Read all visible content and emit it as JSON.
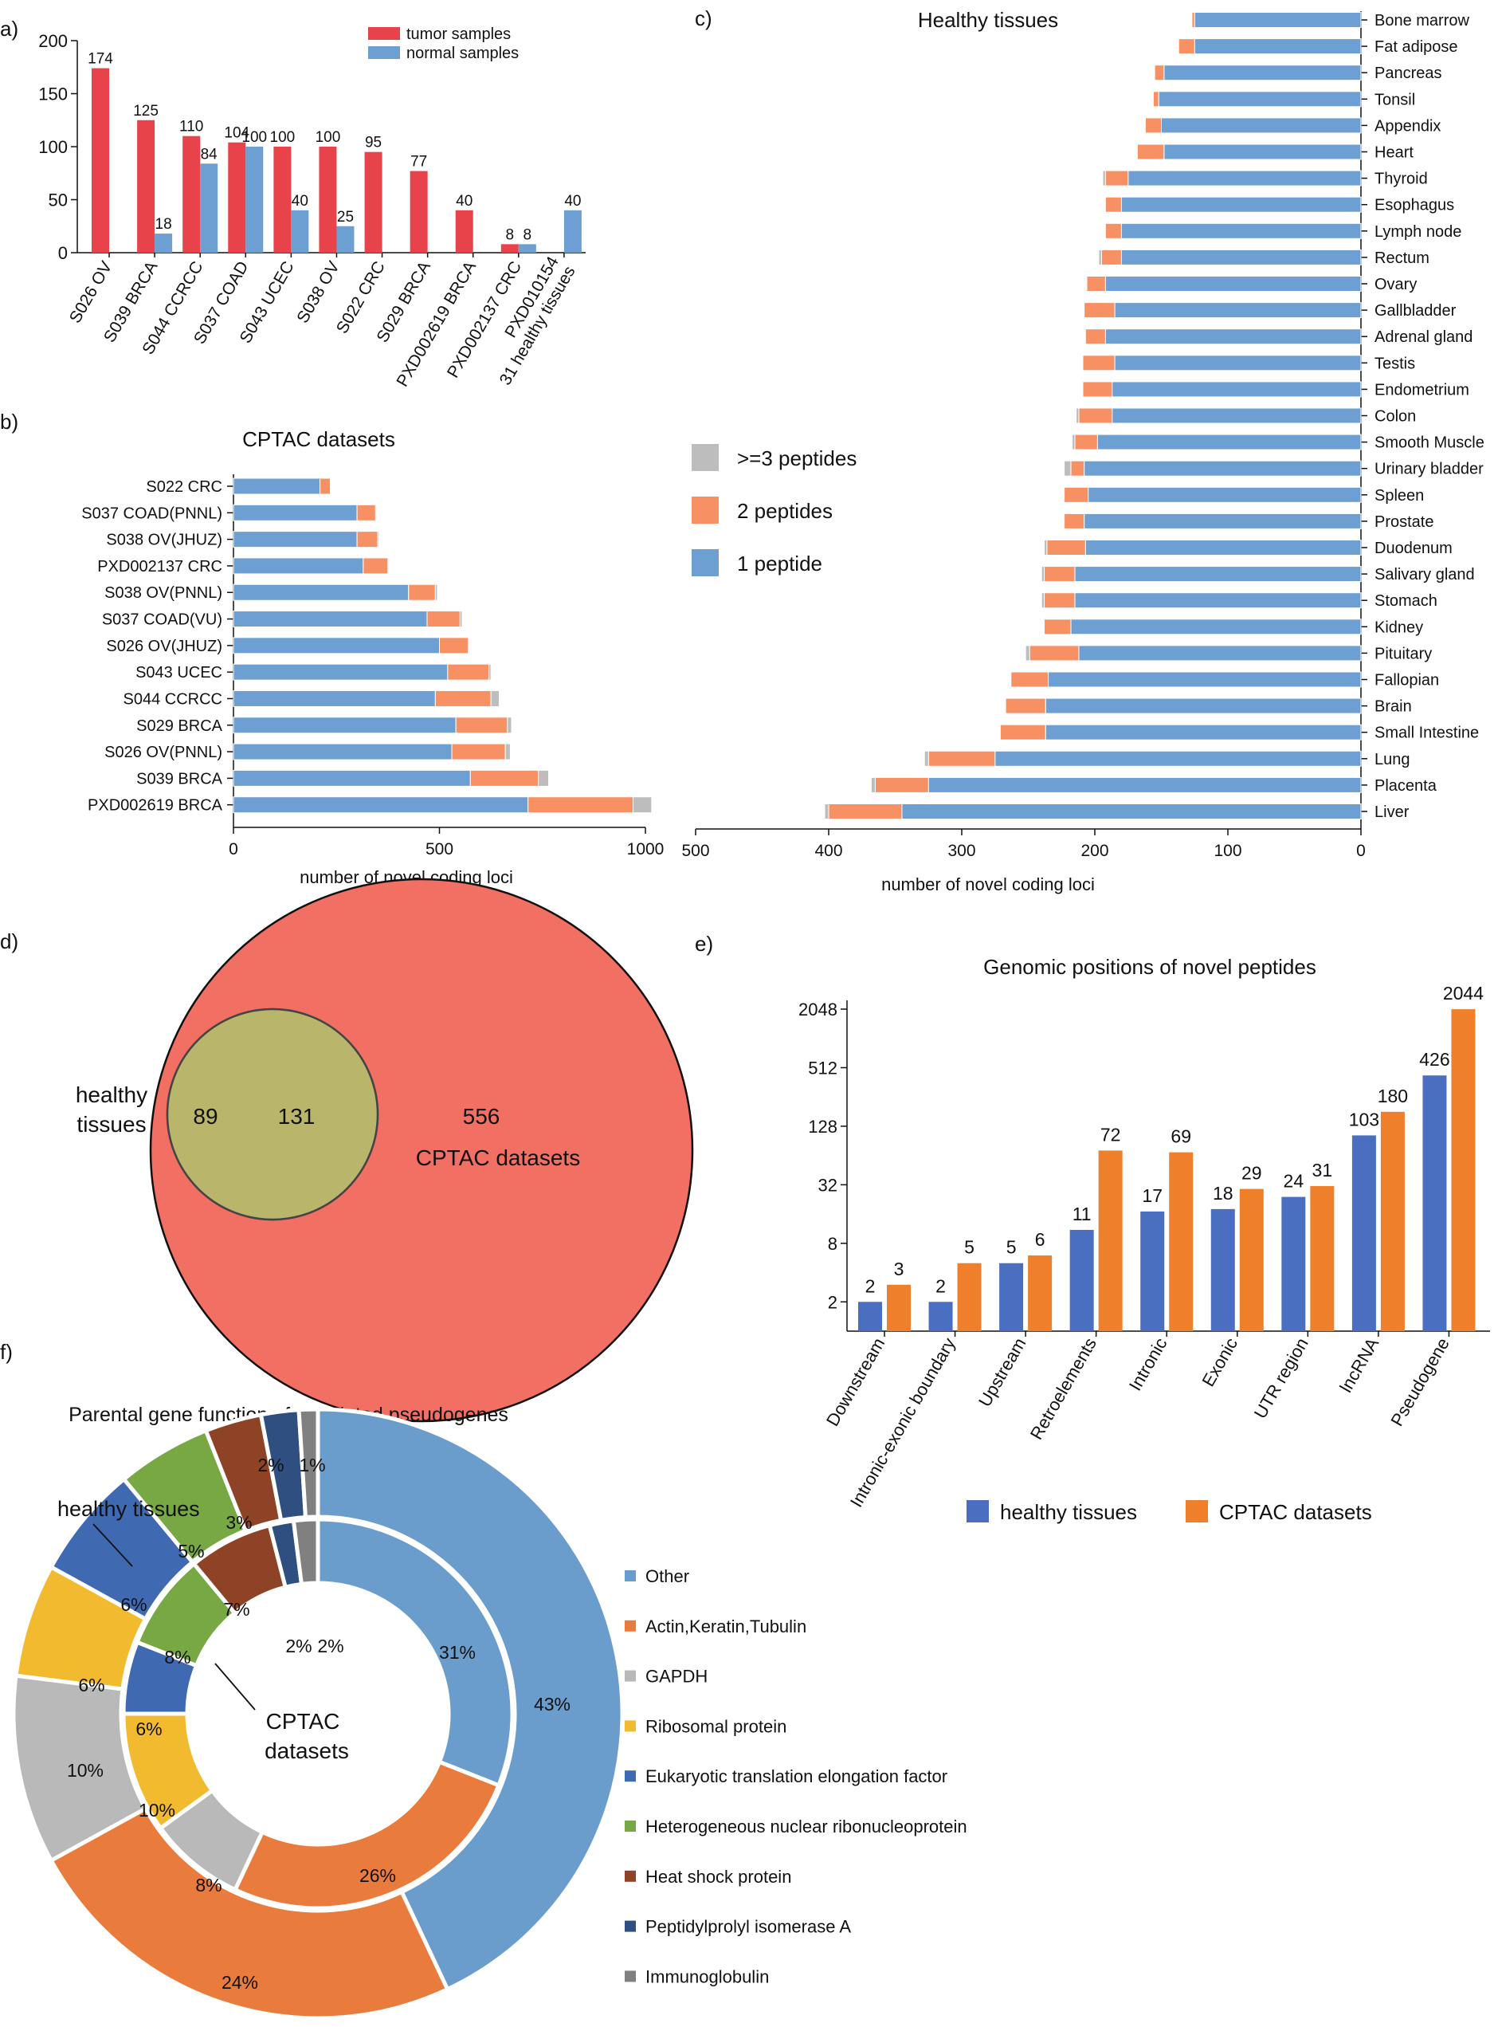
{
  "colors": {
    "tumor": "#e8434a",
    "normal": "#6e9fd2",
    "one_pep": "#6e9fd2",
    "two_pep": "#f79163",
    "three_pep": "#bdbdbd",
    "healthy_circle": "#d4e68a",
    "cptac_circle": "#f26f63",
    "overlap": "#b9b56a",
    "bar_healthy": "#4a6fc1",
    "bar_cptac": "#ef7f2a",
    "pie": {
      "other": "#6a9ccc",
      "actin": "#e97c3c",
      "gapdh": "#b9b9b9",
      "ribosomal": "#f2ba2e",
      "eef": "#3f6ab2",
      "hnrnp": "#77a844",
      "hsp": "#8e4326",
      "ppia": "#2f4f80",
      "ig": "#808080"
    }
  },
  "panel_labels": {
    "a": "a)",
    "b": "b)",
    "c": "c)",
    "d": "d)",
    "e": "e)",
    "f": "f)"
  },
  "chart_data": [
    {
      "id": "a",
      "type": "bar",
      "title": "",
      "categories": [
        "S026 OV",
        "S039 BRCA",
        "S044 CCRCC",
        "S037 COAD",
        "S043 UCEC",
        "S038 OV",
        "S022 CRC",
        "S029 BRCA",
        "PXD002619 BRCA",
        "PXD002137 CRC",
        "PXD010154\n31 healthy tissues"
      ],
      "category_lines": [
        [
          "S026 OV"
        ],
        [
          "S039 BRCA"
        ],
        [
          "S044 CCRCC"
        ],
        [
          "S037 COAD"
        ],
        [
          "S043 UCEC"
        ],
        [
          "S038 OV"
        ],
        [
          "S022 CRC"
        ],
        [
          "S029 BRCA"
        ],
        [
          "PXD002619 BRCA"
        ],
        [
          "PXD002137 CRC"
        ],
        [
          "PXD010154",
          "31 healthy tissues"
        ]
      ],
      "series": [
        {
          "name": "tumor samples",
          "values": [
            174,
            125,
            110,
            104,
            100,
            100,
            95,
            77,
            40,
            8,
            null
          ]
        },
        {
          "name": "normal samples",
          "values": [
            null,
            18,
            84,
            100,
            40,
            25,
            null,
            null,
            null,
            8,
            40
          ]
        }
      ],
      "yticks": [
        0,
        50,
        100,
        150,
        200
      ],
      "ylim": [
        0,
        200
      ]
    },
    {
      "id": "b",
      "type": "bar",
      "orientation": "horizontal",
      "stacked": true,
      "title": "CPTAC datasets",
      "xlabel": "number of novel coding loci",
      "categories": [
        "S022 CRC",
        "S037 COAD(PNNL)",
        "S038 OV(JHUZ)",
        "PXD002137 CRC",
        "S038 OV(PNNL)",
        "S037 COAD(VU)",
        "S026 OV(JHUZ)",
        "S043 UCEC",
        "S044 CCRCC",
        "S029 BRCA",
        "S026 OV(PNNL)",
        "S039 BRCA",
        "PXD002619 BRCA"
      ],
      "series": [
        {
          "name": "1 peptide",
          "values": [
            210,
            300,
            300,
            315,
            425,
            470,
            500,
            520,
            490,
            540,
            530,
            575,
            715
          ]
        },
        {
          "name": "2 peptides",
          "values": [
            25,
            45,
            50,
            60,
            65,
            80,
            70,
            100,
            135,
            125,
            130,
            165,
            255
          ]
        },
        {
          "name": ">=3 peptides",
          "values": [
            0,
            2,
            3,
            2,
            5,
            5,
            2,
            5,
            20,
            10,
            12,
            25,
            45
          ]
        }
      ],
      "xticks": [
        0,
        500,
        1000
      ],
      "xlim": [
        0,
        1000
      ]
    },
    {
      "id": "c",
      "type": "bar",
      "orientation": "horizontal",
      "stacked": true,
      "reversed_x": true,
      "title": "Healthy tissues",
      "xlabel": "number of novel coding loci",
      "categories": [
        "Bone marrow",
        "Fat adipose",
        "Pancreas",
        "Tonsil",
        "Appendix",
        "Heart",
        "Thyroid",
        "Esophagus",
        "Lymph node",
        "Rectum",
        "Ovary",
        "Gallbladder",
        "Adrenal gland",
        "Testis",
        "Endometrium",
        "Colon",
        "Smooth Muscle",
        "Urinary bladder",
        "Spleen",
        "Prostate",
        "Duodenum",
        "Salivary gland",
        "Stomach",
        "Kidney",
        "Pituitary",
        "Fallopian",
        "Brain",
        "Small Intestine",
        "Lung",
        "Placenta",
        "Liver"
      ],
      "series": [
        {
          "name": "1 peptide",
          "values": [
            125,
            125,
            148,
            152,
            150,
            148,
            175,
            180,
            180,
            180,
            192,
            185,
            192,
            185,
            187,
            187,
            198,
            208,
            205,
            208,
            207,
            215,
            215,
            218,
            212,
            235,
            237,
            237,
            275,
            325,
            345
          ]
        },
        {
          "name": "2 peptides",
          "values": [
            2,
            12,
            7,
            4,
            12,
            20,
            17,
            12,
            12,
            15,
            14,
            23,
            15,
            24,
            22,
            25,
            17,
            10,
            18,
            15,
            29,
            23,
            23,
            20,
            37,
            28,
            30,
            34,
            50,
            40,
            55
          ]
        },
        {
          "name": ">=3 peptides",
          "values": [
            0,
            0,
            0,
            0,
            0,
            0,
            2,
            0,
            0,
            2,
            0,
            0,
            0,
            0,
            0,
            2,
            2,
            5,
            0,
            0,
            2,
            2,
            2,
            0,
            3,
            0,
            0,
            0,
            3,
            3,
            3
          ]
        }
      ],
      "xticks": [
        500,
        400,
        300,
        200,
        100,
        0
      ],
      "xlim": [
        500,
        0
      ]
    },
    {
      "id": "d",
      "type": "venn",
      "sets": [
        {
          "name_lines": [
            "healthy",
            "tissues"
          ],
          "only": 89
        },
        {
          "name_lines": [
            "CPTAC datasets"
          ],
          "only": 556
        }
      ],
      "overlap": 131
    },
    {
      "id": "e",
      "type": "bar",
      "title": "Genomic positions of novel peptides",
      "yscale": "log2",
      "categories": [
        "Downstream",
        "Intronic-exonic boundary",
        "Upstream",
        "Retroelements",
        "Intronic",
        "Exonic",
        "UTR region",
        "lncRNA",
        "Pseudogene"
      ],
      "series": [
        {
          "name": "healthy tissues",
          "values": [
            2,
            2,
            5,
            11,
            17,
            18,
            24,
            103,
            426
          ]
        },
        {
          "name": "CPTAC datasets",
          "values": [
            3,
            5,
            6,
            72,
            69,
            29,
            31,
            180,
            2044
          ]
        }
      ],
      "yticks": [
        2,
        8,
        32,
        128,
        512,
        2048
      ]
    },
    {
      "id": "f",
      "type": "pie",
      "variant": "donut",
      "title": "Parental gene function of translated pseudogenes",
      "outer_label": "healthy tissues",
      "inner_label_lines": [
        "CPTAC",
        "datasets"
      ],
      "categories": [
        "Other",
        "Actin,Keratin,Tubulin",
        "GAPDH",
        "Ribosomal protein",
        "Eukaryotic translation elongation factor",
        "Heterogeneous nuclear ribonucleoprotein",
        "Heat shock protein",
        "Peptidylprolyl isomerase A",
        "Immunoglobulin"
      ],
      "keys": [
        "other",
        "actin",
        "gapdh",
        "ribosomal",
        "eef",
        "hnrnp",
        "hsp",
        "ppia",
        "ig"
      ],
      "series": [
        {
          "name": "healthy tissues",
          "ring": "outer",
          "values": [
            43,
            24,
            10,
            6,
            6,
            5,
            3,
            2,
            1
          ]
        },
        {
          "name": "CPTAC datasets",
          "ring": "inner",
          "values": [
            31,
            26,
            8,
            10,
            6,
            8,
            7,
            2,
            2
          ]
        }
      ]
    }
  ]
}
